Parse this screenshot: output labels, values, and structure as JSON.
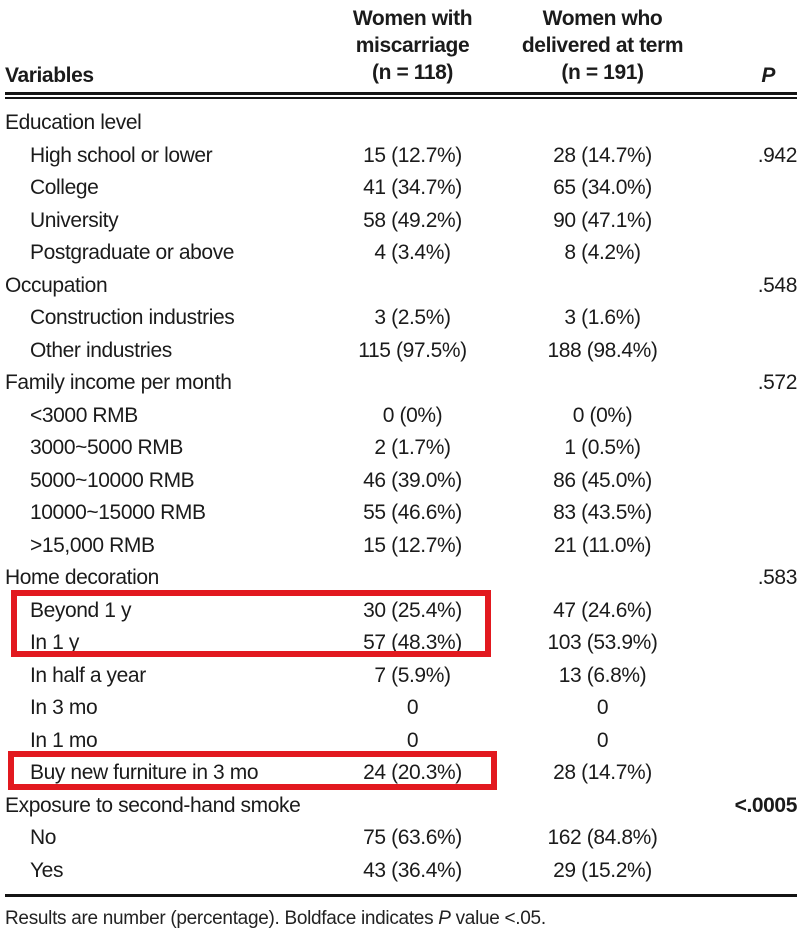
{
  "header": {
    "variables_label": "Variables",
    "col_miscarriage": {
      "lines": [
        "Women with",
        "miscarriage",
        "(n = 118)"
      ]
    },
    "col_term": {
      "lines": [
        "Women who",
        "delivered at term",
        "(n = 191)"
      ]
    },
    "p_label": "P"
  },
  "table": {
    "rows": [
      {
        "label": "Education level",
        "indent": false,
        "v1": "",
        "v2": "",
        "p": ""
      },
      {
        "label": "High school or lower",
        "indent": true,
        "v1": "15 (12.7%)",
        "v2": "28 (14.7%)",
        "p": ".942"
      },
      {
        "label": "College",
        "indent": true,
        "v1": "41 (34.7%)",
        "v2": "65 (34.0%)",
        "p": ""
      },
      {
        "label": "University",
        "indent": true,
        "v1": "58 (49.2%)",
        "v2": "90 (47.1%)",
        "p": ""
      },
      {
        "label": "Postgraduate or above",
        "indent": true,
        "v1": "4 (3.4%)",
        "v2": "8 (4.2%)",
        "p": ""
      },
      {
        "label": "Occupation",
        "indent": false,
        "v1": "",
        "v2": "",
        "p": ".548"
      },
      {
        "label": "Construction industries",
        "indent": true,
        "v1": "3 (2.5%)",
        "v2": "3 (1.6%)",
        "p": ""
      },
      {
        "label": "Other industries",
        "indent": true,
        "v1": "115 (97.5%)",
        "v2": "188 (98.4%)",
        "p": ""
      },
      {
        "label": "Family income per month",
        "indent": false,
        "v1": "",
        "v2": "",
        "p": ".572"
      },
      {
        "label": "<3000 RMB",
        "indent": true,
        "v1": "0 (0%)",
        "v2": "0 (0%)",
        "p": ""
      },
      {
        "label": "3000~5000 RMB",
        "indent": true,
        "v1": "2 (1.7%)",
        "v2": "1 (0.5%)",
        "p": ""
      },
      {
        "label": "5000~10000 RMB",
        "indent": true,
        "v1": "46 (39.0%)",
        "v2": "86 (45.0%)",
        "p": ""
      },
      {
        "label": "10000~15000 RMB",
        "indent": true,
        "v1": "55 (46.6%)",
        "v2": "83 (43.5%)",
        "p": ""
      },
      {
        "label": ">15,000 RMB",
        "indent": true,
        "v1": "15 (12.7%)",
        "v2": "21 (11.0%)",
        "p": ""
      },
      {
        "label": "Home decoration",
        "indent": false,
        "v1": "",
        "v2": "",
        "p": ".583"
      },
      {
        "label": "Beyond 1 y",
        "indent": true,
        "v1": "30 (25.4%)",
        "v2": "47 (24.6%)",
        "p": ""
      },
      {
        "label": "In 1 y",
        "indent": true,
        "v1": "57 (48.3%)",
        "v2": "103 (53.9%)",
        "p": ""
      },
      {
        "label": "In half a year",
        "indent": true,
        "v1": "7 (5.9%)",
        "v2": "13 (6.8%)",
        "p": ""
      },
      {
        "label": "In 3 mo",
        "indent": true,
        "v1": "0",
        "v2": "0",
        "p": ""
      },
      {
        "label": "In 1 mo",
        "indent": true,
        "v1": "0",
        "v2": "0",
        "p": ""
      },
      {
        "label": "Buy new furniture in 3 mo",
        "indent": true,
        "v1": "24 (20.3%)",
        "v2": "28 (14.7%)",
        "p": ""
      },
      {
        "label": "Exposure to second-hand smoke",
        "indent": false,
        "v1": "",
        "v2": "",
        "p": "<.0005",
        "p_bold": true
      },
      {
        "label": "No",
        "indent": true,
        "v1": "75 (63.6%)",
        "v2": "162 (84.8%)",
        "p": ""
      },
      {
        "label": "Yes",
        "indent": true,
        "v1": "43 (36.4%)",
        "v2": "29 (15.2%)",
        "p": ""
      }
    ]
  },
  "annotations": {
    "color": "#e2191f",
    "boxes": [
      {
        "name": "highlight-box-1",
        "highlights": "Beyond 1 y and In 1 y rows (miscarriage column)"
      },
      {
        "name": "highlight-box-2",
        "highlights": "Buy new furniture in 3 mo row (miscarriage column)"
      }
    ]
  },
  "footnote": {
    "part1": "Results are number (percentage). Boldface indicates ",
    "p_label": "P",
    "part2": " value <.05."
  }
}
